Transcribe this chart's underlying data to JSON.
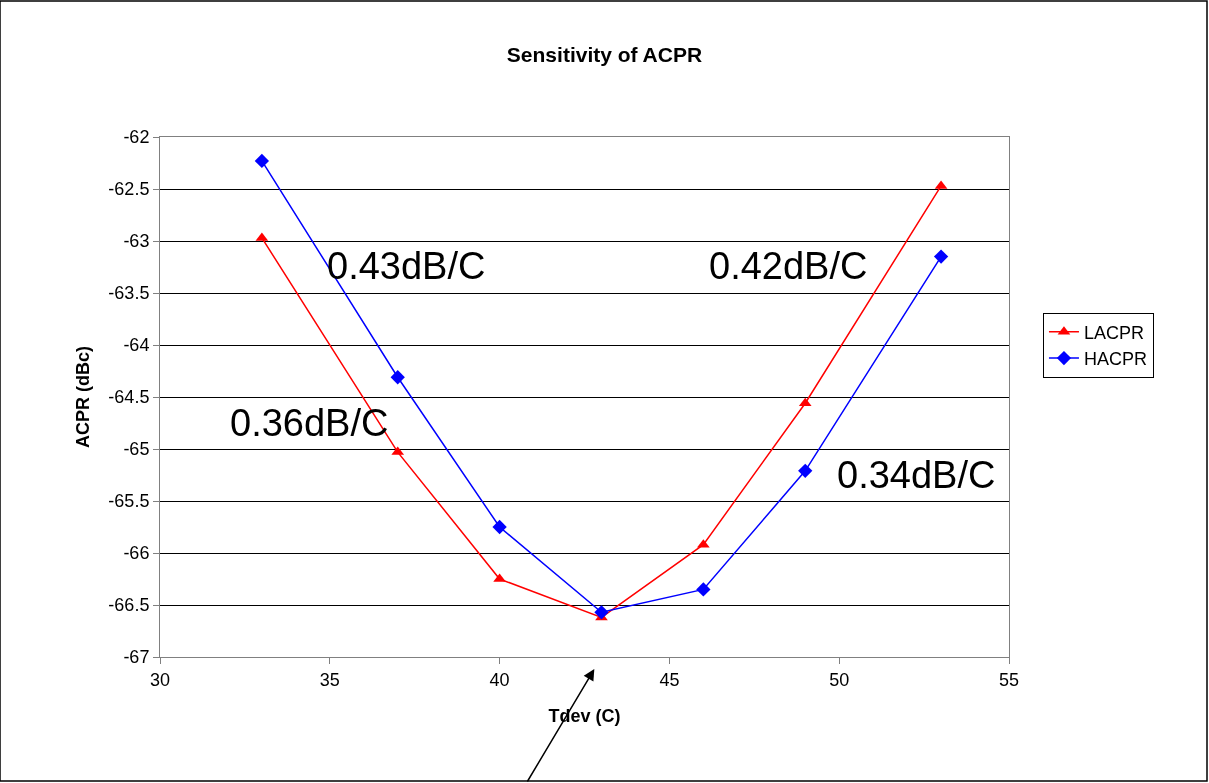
{
  "chart_data": {
    "type": "line",
    "title": "Sensitivity of ACPR",
    "xlabel": "Tdev (C)",
    "ylabel": "ACPR (dBc)",
    "x": [
      33,
      37,
      40,
      43,
      46,
      49,
      53
    ],
    "series": [
      {
        "name": "LACPR",
        "color": "#ff0000",
        "marker": "triangle",
        "values": [
          -62.97,
          -65.03,
          -66.25,
          -66.62,
          -65.92,
          -64.56,
          -62.47
        ]
      },
      {
        "name": "HACPR",
        "color": "#0000ff",
        "marker": "diamond",
        "values": [
          -62.23,
          -64.31,
          -65.75,
          -66.57,
          -66.35,
          -65.21,
          -63.15
        ]
      }
    ],
    "xlim": [
      30,
      55
    ],
    "xticks": [
      30,
      35,
      40,
      45,
      50,
      55
    ],
    "ylim": [
      -67,
      -62
    ],
    "yticks": [
      -67,
      -66.5,
      -66,
      -65.5,
      -65,
      -64.5,
      -64,
      -63.5,
      -63,
      -62.5,
      -62
    ],
    "grid": "y",
    "legend": "right",
    "line_style": "solid",
    "annotations": [
      "0.43dB/C",
      "0.42dB/C",
      "0.36dB/C",
      "0.34dB/C"
    ]
  }
}
